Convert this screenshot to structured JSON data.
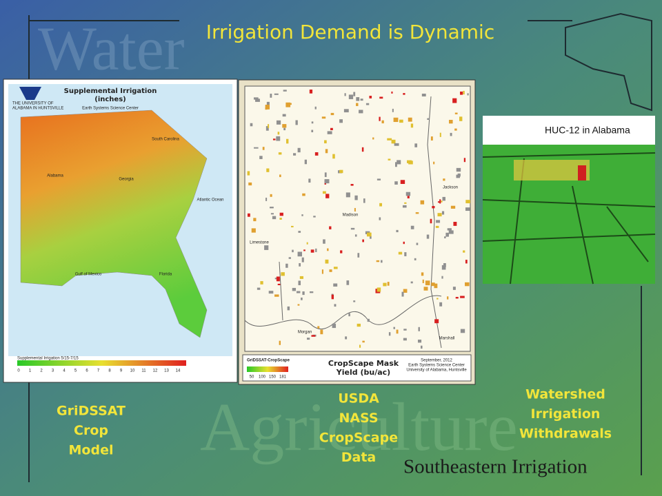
{
  "slide": {
    "title": "Irrigation Demand is Dynamic",
    "watermark_top": "Water",
    "watermark_bottom": "Agriculture",
    "footer": "Southeastern Irrigation",
    "panels": [
      {
        "map_title": [
          "Supplemental Irrigation",
          "(inches)"
        ],
        "org": [
          "THE UNIVERSITY OF",
          "ALABAMA IN HUNTSVILLE"
        ],
        "center": "Earth Systems Science Center",
        "places": [
          "South Carolina",
          "Alabama",
          "Georgia",
          "Atlantic Ocean",
          "Gulf of Mexico",
          "Florida"
        ],
        "legend_title": "Supplemental Irrigation 5/15-7/15",
        "legend_values": [
          0,
          1,
          2,
          3,
          4,
          5,
          6,
          7,
          8,
          9,
          10,
          11,
          12,
          13,
          14
        ],
        "caption": [
          "GriDSSAT",
          "Crop",
          "Model"
        ]
      },
      {
        "places": [
          "Jackson",
          "Madison",
          "Limestone",
          "Morgan",
          "Marshall"
        ],
        "legend_title": "GriDSSAT-CropScape",
        "legend_values": [
          50,
          100,
          150,
          181
        ],
        "map_title": [
          "CropScape Mask",
          "Yield (bu/ac)"
        ],
        "credits": [
          "September, 2012",
          "Earth Systems Science Center",
          "University of Alabama, Huntsville"
        ],
        "caption": [
          "USDA",
          "NASS",
          "CropScape",
          "Data"
        ]
      },
      {
        "map_title": "HUC-12 in Alabama",
        "caption": [
          "Watershed",
          "Irrigation",
          "Withdrawals"
        ]
      }
    ]
  }
}
